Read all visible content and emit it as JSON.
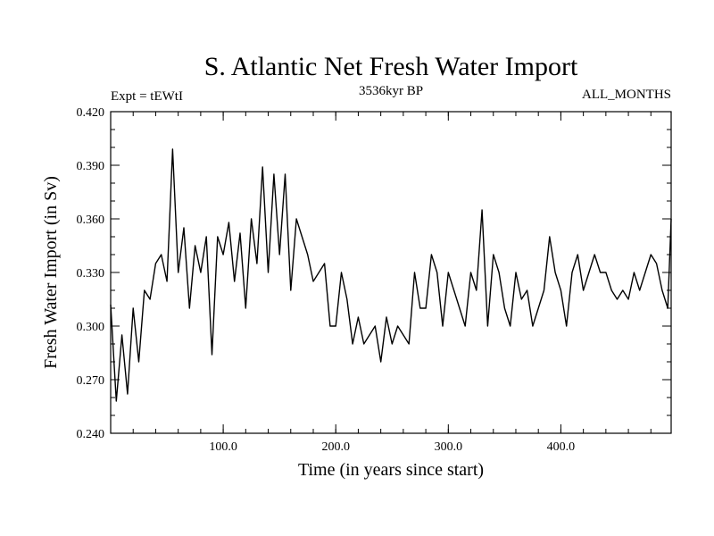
{
  "chart_data": {
    "type": "line",
    "title": "S. Atlantic Net Fresh Water Import",
    "subtitle_left": "Expt = tEWtI",
    "subtitle_center": "3536kyr BP",
    "subtitle_right": "ALL_MONTHS",
    "xlabel": "Time (in years since start)",
    "ylabel": "Fresh Water Import (in Sv)",
    "xlim": [
      0,
      498
    ],
    "ylim": [
      0.24,
      0.42
    ],
    "x_ticks": [
      100,
      200,
      300,
      400
    ],
    "x_tick_labels": [
      "100.0",
      "200.0",
      "300.0",
      "400.0"
    ],
    "y_ticks": [
      0.24,
      0.27,
      0.3,
      0.33,
      0.36,
      0.39,
      0.42
    ],
    "y_tick_labels": [
      "0.240",
      "0.270",
      "0.300",
      "0.330",
      "0.360",
      "0.390",
      "0.420"
    ],
    "grid": false,
    "series": [
      {
        "name": "Net Fresh Water Import",
        "x": [
          0,
          5,
          10,
          15,
          20,
          25,
          30,
          35,
          40,
          45,
          50,
          55,
          60,
          65,
          70,
          75,
          80,
          85,
          90,
          95,
          100,
          105,
          110,
          115,
          120,
          125,
          130,
          135,
          140,
          145,
          150,
          155,
          160,
          165,
          170,
          175,
          180,
          185,
          190,
          195,
          200,
          205,
          210,
          215,
          220,
          225,
          230,
          235,
          240,
          245,
          250,
          255,
          260,
          265,
          270,
          275,
          280,
          285,
          290,
          295,
          300,
          305,
          310,
          315,
          320,
          325,
          330,
          335,
          340,
          345,
          350,
          355,
          360,
          365,
          370,
          375,
          380,
          385,
          390,
          395,
          400,
          405,
          410,
          415,
          420,
          425,
          430,
          435,
          440,
          445,
          450,
          455,
          460,
          465,
          470,
          475,
          480,
          485,
          490,
          495,
          498
        ],
        "values": [
          0.312,
          0.258,
          0.295,
          0.262,
          0.31,
          0.28,
          0.32,
          0.315,
          0.335,
          0.34,
          0.325,
          0.399,
          0.33,
          0.355,
          0.31,
          0.345,
          0.33,
          0.35,
          0.284,
          0.35,
          0.34,
          0.358,
          0.325,
          0.352,
          0.31,
          0.36,
          0.335,
          0.389,
          0.33,
          0.385,
          0.34,
          0.385,
          0.32,
          0.36,
          0.35,
          0.34,
          0.325,
          0.33,
          0.335,
          0.3,
          0.3,
          0.33,
          0.315,
          0.29,
          0.305,
          0.29,
          0.295,
          0.3,
          0.28,
          0.305,
          0.29,
          0.3,
          0.295,
          0.29,
          0.33,
          0.31,
          0.31,
          0.34,
          0.33,
          0.3,
          0.33,
          0.32,
          0.31,
          0.3,
          0.33,
          0.32,
          0.365,
          0.3,
          0.34,
          0.33,
          0.31,
          0.3,
          0.33,
          0.315,
          0.32,
          0.3,
          0.31,
          0.32,
          0.35,
          0.33,
          0.32,
          0.3,
          0.33,
          0.34,
          0.32,
          0.33,
          0.34,
          0.33,
          0.33,
          0.32,
          0.315,
          0.32,
          0.315,
          0.33,
          0.32,
          0.33,
          0.34,
          0.335,
          0.32,
          0.31,
          0.36
        ]
      }
    ]
  }
}
